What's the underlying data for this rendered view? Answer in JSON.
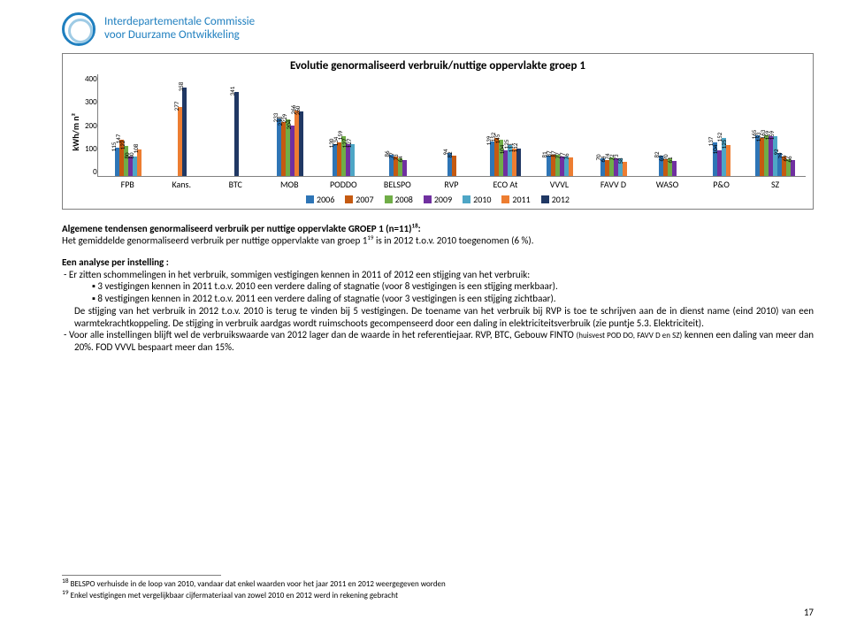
{
  "header": {
    "org_line1": "Interdepartementale Commissie",
    "org_line2": "voor Duurzame Ontwikkeling"
  },
  "chart": {
    "title": "Evolutie genormaliseerd verbruik/nuttige oppervlakte groep 1",
    "y_label": "kWh/m n²",
    "y_ticks": [
      "400",
      "300",
      "200",
      "100",
      "0"
    ],
    "ymax": 400,
    "categories": [
      "FPB",
      "Kans.",
      "BTC",
      "MOB",
      "PODDO",
      "BELSPO",
      "RVP",
      "ECO At",
      "VVVL",
      "FAVV D",
      "WASO",
      "P&O",
      "SZ"
    ],
    "series_colors": [
      "#2e75b6",
      "#c55a11",
      "#70ad47",
      "#7030a0",
      "#4ea6c6",
      "#ed7d31",
      "#203864"
    ],
    "legend_labels": [
      "2006",
      "2007",
      "2008",
      "2009",
      "2010",
      "2011",
      "2012"
    ],
    "data": [
      [
        115,
        147,
        122,
        80,
        80,
        108,
        null
      ],
      [
        null,
        null,
        null,
        null,
        null,
        277,
        358
      ],
      [
        null,
        null,
        null,
        null,
        null,
        null,
        341
      ],
      [
        233,
        218,
        229,
        204,
        null,
        266,
        260
      ],
      [
        130,
        134,
        159,
        127,
        127,
        null,
        null
      ],
      [
        86,
        77,
        73,
        64,
        null,
        null,
        null
      ],
      [
        94,
        82,
        null,
        null,
        null,
        null,
        null
      ],
      [
        139,
        152,
        145,
        104,
        125,
        111,
        112
      ],
      [
        81,
        87,
        87,
        77,
        77,
        76,
        null
      ],
      [
        70,
        64,
        74,
        72,
        73,
        58,
        null
      ],
      [
        82,
        69,
        70,
        61,
        null,
        null,
        null
      ],
      [
        137,
        null,
        null,
        104,
        152,
        125,
        null
      ],
      [
        165,
        153,
        163,
        159,
        159,
        null,
        null
      ]
    ],
    "sz_extra": [
      92,
      79,
      69,
      66
    ]
  },
  "text": {
    "head1a": "Algemene tendensen genormaliseerd verbruik per nuttige oppervlakte GROEP 1 (n=11)",
    "head1b": ":",
    "sup18": "18",
    "line1a": "Het gemiddelde genormaliseerd verbruik per nuttige oppervlakte van groep 1",
    "sup19": "19",
    "line1b": " is in 2012 t.o.v. 2010 toegenomen (6 %).",
    "head2": "Een analyse per instelling :",
    "b1": "Er zitten schommelingen in het verbruik, sommigen vestigingen kennen in 2011 of 2012 een stijging van het verbruik:",
    "sq1": "3 vestigingen kennen in 2011 t.o.v. 2010 een verdere daling of stagnatie (voor 8 vestigingen is een stijging merkbaar).",
    "sq2": "8 vestigingen kennen in 2012 t.o.v. 2011 een verdere daling of stagnatie (voor 3 vestigingen is een stijging zichtbaar).",
    "para2": "De stijging van het verbruik in 2012 t.o.v. 2010 is terug te vinden bij 5 vestigingen. De toename van het verbruik bij RVP is toe te schrijven aan de in dienst name (eind 2010) van een warmtekrachtkoppeling. De stijging in verbruik aardgas wordt ruimschoots gecompenseerd door een daling in elektriciteitsverbruik (zie puntje 5.3. Elektriciteit).",
    "b2a": "Voor alle instellingen blijft wel de verbruikswaarde van 2012 lager dan de waarde in het referentiejaar. RVP, BTC, Gebouw FINTO ",
    "b2small": "(huisvest POD DO, FAVV D en SZ)",
    "b2b": " kennen een daling van meer dan 20%. FOD VVVL bespaart meer dan 15%."
  },
  "footnotes": {
    "f18sup": "18",
    "f18": " BELSPO verhuisde in de loop van 2010, vandaar dat enkel waarden voor het jaar 2011 en 2012 weergegeven worden",
    "f19sup": "19",
    "f19": " Enkel vestigingen met vergelijkbaar cijfermateriaal van zowel 2010 en 2012 werd in rekening gebracht"
  },
  "page": "17"
}
